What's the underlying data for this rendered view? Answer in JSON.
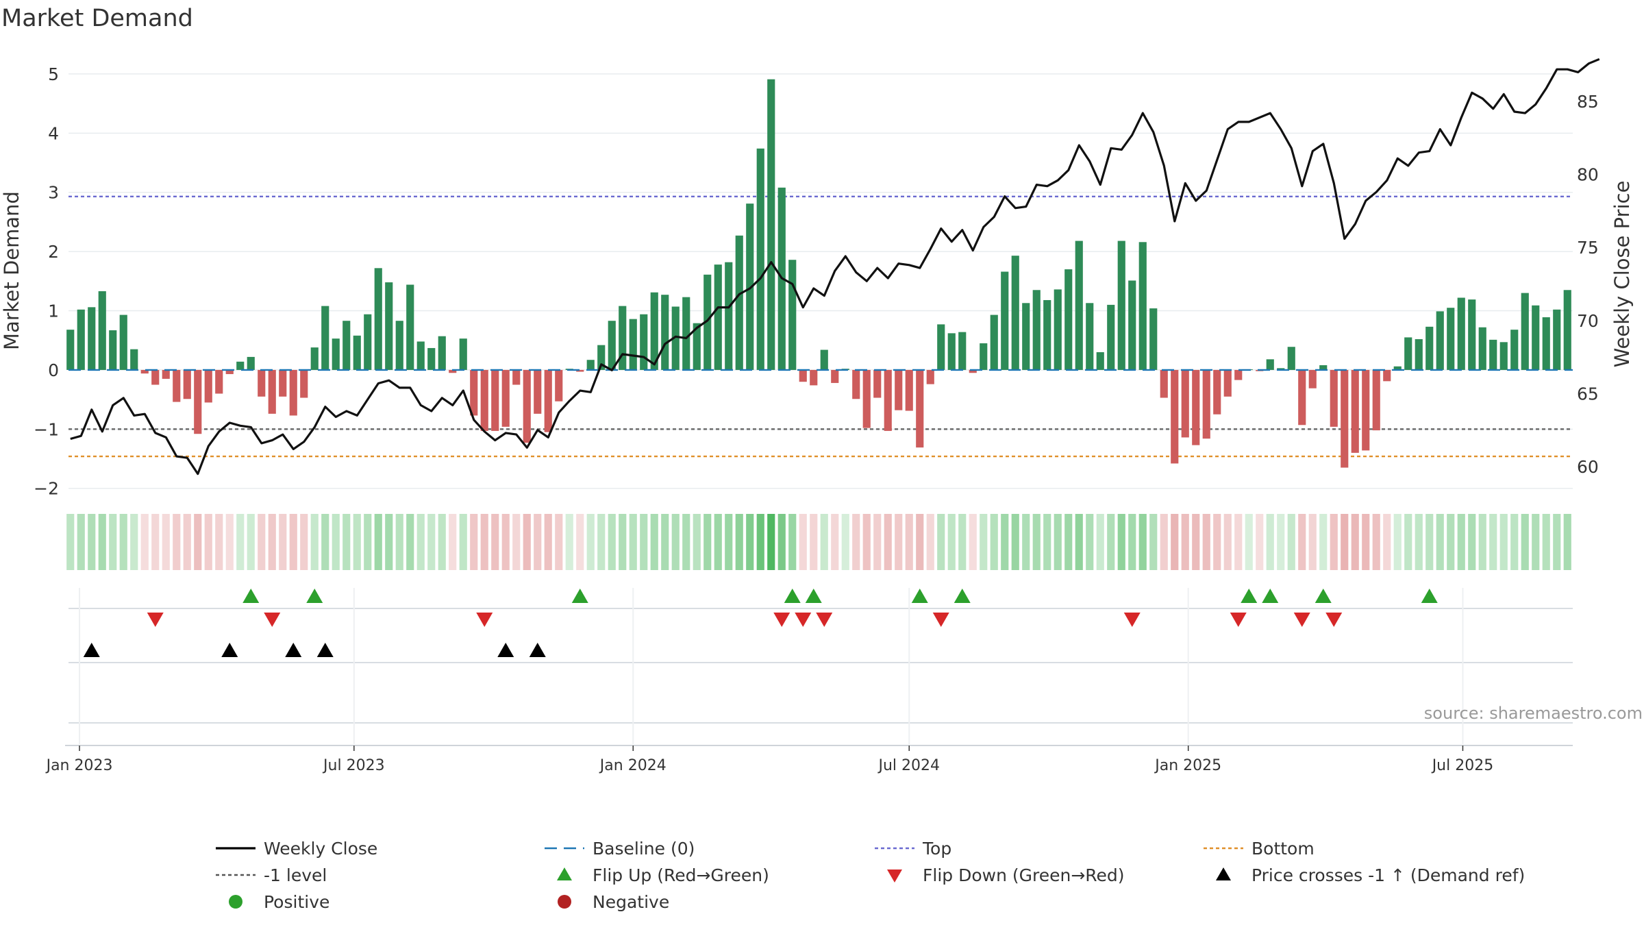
{
  "chart_data": {
    "type": "bar",
    "title": "Market Demand",
    "ylabel_left": "Market Demand",
    "ylabel_right": "Weekly Close Price",
    "ylim_left": [
      -2.2,
      5.3
    ],
    "yticks_left": [
      -2,
      -1,
      0,
      1,
      2,
      3,
      4,
      5
    ],
    "ylim_right": [
      57.7,
      88.1
    ],
    "yticks_right": [
      60,
      65,
      70,
      75,
      80,
      85
    ],
    "x_start": "2022-12-26",
    "x_step_days": 7,
    "x_ticks": [
      {
        "date": "2023-01-01",
        "label": "Jan 2023"
      },
      {
        "date": "2023-07-01",
        "label": "Jul 2023"
      },
      {
        "date": "2024-01-01",
        "label": "Jan 2024"
      },
      {
        "date": "2024-07-01",
        "label": "Jul 2024"
      },
      {
        "date": "2025-01-01",
        "label": "Jan 2025"
      },
      {
        "date": "2025-07-01",
        "label": "Jul 2025"
      }
    ],
    "reference_lines": {
      "baseline": 0,
      "top": 2.93,
      "minus_one": -1,
      "bottom": -1.46
    },
    "demand_values": [
      0.68,
      1.02,
      1.06,
      1.33,
      0.67,
      0.93,
      0.35,
      -0.06,
      -0.25,
      -0.15,
      -0.54,
      -0.49,
      -1.08,
      -0.55,
      -0.4,
      -0.07,
      0.14,
      0.22,
      -0.45,
      -0.74,
      -0.45,
      -0.77,
      -0.47,
      0.38,
      1.08,
      0.53,
      0.83,
      0.58,
      0.94,
      1.72,
      1.48,
      0.83,
      1.44,
      0.48,
      0.37,
      0.57,
      -0.05,
      0.53,
      -0.77,
      -1.03,
      -1.03,
      -0.96,
      -0.25,
      -1.23,
      -0.74,
      -1.05,
      -0.53,
      0.02,
      -0.03,
      0.17,
      0.42,
      0.83,
      1.08,
      0.86,
      0.94,
      1.31,
      1.27,
      1.07,
      1.23,
      0.79,
      1.61,
      1.78,
      1.82,
      2.27,
      2.81,
      3.74,
      4.91,
      3.08,
      1.86,
      -0.2,
      -0.26,
      0.34,
      -0.22,
      0.02,
      -0.49,
      -0.98,
      -0.47,
      -1.03,
      -0.68,
      -0.69,
      -1.31,
      -0.24,
      0.77,
      0.62,
      0.64,
      -0.05,
      0.45,
      0.93,
      1.66,
      1.93,
      1.13,
      1.35,
      1.18,
      1.36,
      1.7,
      2.18,
      1.13,
      0.3,
      1.1,
      2.18,
      1.51,
      2.16,
      1.04,
      -0.47,
      -1.58,
      -1.14,
      -1.27,
      -1.16,
      -0.75,
      -0.45,
      -0.17,
      0.01,
      -0.02,
      0.18,
      0.03,
      0.39,
      -0.93,
      -0.31,
      0.08,
      -0.96,
      -1.65,
      -1.4,
      -1.36,
      -1.02,
      -0.19,
      0.06,
      0.55,
      0.52,
      0.73,
      0.99,
      1.05,
      1.22,
      1.19,
      0.72,
      0.51,
      0.47,
      0.68,
      1.3,
      1.09,
      0.89,
      1.02,
      1.35
    ],
    "close_values": [
      61.9,
      62.1,
      63.9,
      62.4,
      64.2,
      64.7,
      63.5,
      63.6,
      62.3,
      62.0,
      60.7,
      60.6,
      59.5,
      61.4,
      62.4,
      63.0,
      62.8,
      62.7,
      61.6,
      61.8,
      62.2,
      61.2,
      61.7,
      62.7,
      64.1,
      63.4,
      63.8,
      63.5,
      64.6,
      65.7,
      65.9,
      65.4,
      65.4,
      64.2,
      63.8,
      64.7,
      64.2,
      65.2,
      63.2,
      62.4,
      61.8,
      62.3,
      62.2,
      61.3,
      62.5,
      62.0,
      63.7,
      64.5,
      65.2,
      65.1,
      67.0,
      66.6,
      67.7,
      67.6,
      67.5,
      67.0,
      68.4,
      68.9,
      68.8,
      69.5,
      70.0,
      70.9,
      70.9,
      71.8,
      72.2,
      72.9,
      74.0,
      72.9,
      72.5,
      70.9,
      72.2,
      71.7,
      73.4,
      74.4,
      73.3,
      72.7,
      73.6,
      72.9,
      73.9,
      73.8,
      73.6,
      74.9,
      76.3,
      75.4,
      76.2,
      74.8,
      76.4,
      77.1,
      78.5,
      77.7,
      77.8,
      79.3,
      79.2,
      79.6,
      80.3,
      82.0,
      80.9,
      79.3,
      81.8,
      81.7,
      82.7,
      84.2,
      82.9,
      80.6,
      76.8,
      79.4,
      78.2,
      78.9,
      81.0,
      83.1,
      83.6,
      83.6,
      83.9,
      84.2,
      83.1,
      81.8,
      79.2,
      81.6,
      82.1,
      79.4,
      75.6,
      76.6,
      78.2,
      78.8,
      79.6,
      81.1,
      80.6,
      81.5,
      81.6,
      83.1,
      82.0,
      83.9,
      85.6,
      85.2,
      84.5,
      85.5,
      84.3,
      84.2,
      84.8,
      85.9,
      87.2,
      87.2,
      87.0,
      87.6,
      87.9
    ],
    "flip_up_dates": [
      "2023-04-24",
      "2023-06-05",
      "2023-11-27",
      "2024-04-15",
      "2024-04-29",
      "2024-07-08",
      "2024-08-05",
      "2025-02-10",
      "2025-02-24",
      "2025-03-31",
      "2025-06-09"
    ],
    "flip_down_dates": [
      "2023-02-20",
      "2023-05-08",
      "2023-09-25",
      "2024-04-08",
      "2024-04-22",
      "2024-05-06",
      "2024-07-22",
      "2024-11-25",
      "2025-02-03",
      "2025-03-17",
      "2025-04-07"
    ],
    "price_cross_dates": [
      "2023-01-09",
      "2023-04-10",
      "2023-05-22",
      "2023-06-12",
      "2023-10-09",
      "2023-10-30"
    ],
    "source_text": "source: sharemaestro.com",
    "legend": [
      {
        "label": "Weekly Close",
        "style": "line",
        "color": "#000000"
      },
      {
        "label": "Baseline (0)",
        "style": "dash",
        "color": "#1f77b4"
      },
      {
        "label": "Top",
        "style": "dot",
        "color": "#6a6ad0"
      },
      {
        "label": "Bottom",
        "style": "dot",
        "color": "#e0902a"
      },
      {
        "label": "-1 level",
        "style": "dot",
        "color": "#555555"
      },
      {
        "label": "Flip Up (Red→Green)",
        "style": "tri-up",
        "color": "#2ca02c"
      },
      {
        "label": "Flip Down (Green→Red)",
        "style": "tri-down",
        "color": "#d62728"
      },
      {
        "label": "Price crosses -1 ↑ (Demand ref)",
        "style": "tri-up",
        "color": "#000000"
      },
      {
        "label": "Positive",
        "style": "circle",
        "color": "#2ca02c"
      },
      {
        "label": "Negative",
        "style": "circle",
        "color": "#b22222"
      }
    ],
    "colors": {
      "positive": "#2e8b57",
      "negative": "#cd5c5c",
      "heat_pos": "#3cb050",
      "heat_neg": "#d26464"
    }
  }
}
